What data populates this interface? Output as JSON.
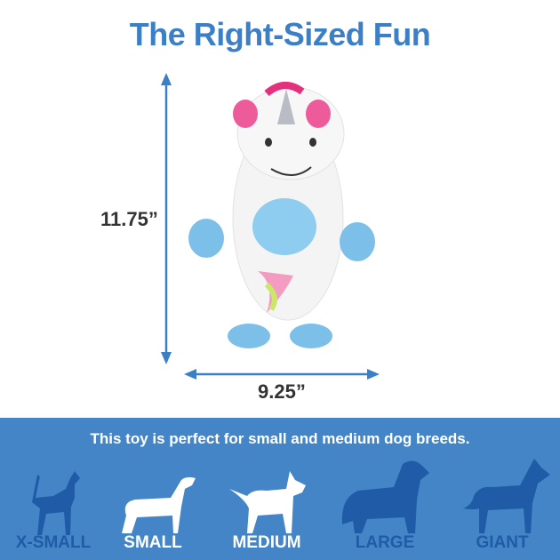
{
  "title": "The Right-Sized Fun",
  "dimensions": {
    "height": "11.75”",
    "width": "9.25”"
  },
  "product_image": "white unicorn plush toy with pink ears, blue belly and feet, rainbow tail",
  "banner": {
    "text": "This toy is perfect for small and medium dog breeds.",
    "background_color": "#4385c6",
    "sizes": [
      {
        "label": "X-SMALL",
        "icon": "chihuahua-icon",
        "highlighted": false
      },
      {
        "label": "SMALL",
        "icon": "dachshund-icon",
        "highlighted": true
      },
      {
        "label": "MEDIUM",
        "icon": "bull-terrier-icon",
        "highlighted": true
      },
      {
        "label": "LARGE",
        "icon": "retriever-icon",
        "highlighted": false
      },
      {
        "label": "GIANT",
        "icon": "great-dane-icon",
        "highlighted": false
      }
    ]
  },
  "colors": {
    "title": "#3b80c6",
    "inactive_size": "#1f5ba6",
    "active_size": "#ffffff"
  }
}
